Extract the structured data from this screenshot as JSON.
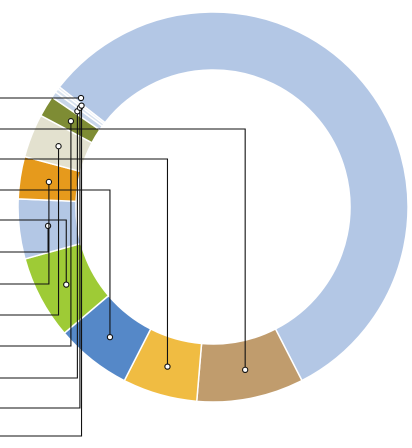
{
  "chart_data": {
    "type": "pie",
    "variant": "donut",
    "title": "",
    "legend": "none",
    "slices": [
      {
        "label": "",
        "value": 55.2,
        "color": "#b3c7e5"
      },
      {
        "label": "",
        "value": 8.6,
        "color": "#c09c6d"
      },
      {
        "label": "",
        "value": 6.0,
        "color": "#f0bc42"
      },
      {
        "label": "",
        "value": 6.1,
        "color": "#5588c8"
      },
      {
        "label": "",
        "value": 6.7,
        "color": "#9ecb36"
      },
      {
        "label": "",
        "value": 4.8,
        "color": "#b3c7e5"
      },
      {
        "label": "",
        "value": 3.4,
        "color": "#e69a1c"
      },
      {
        "label": "",
        "value": 3.5,
        "color": "#e3e1cf"
      },
      {
        "label": "",
        "value": 1.7,
        "color": "#7e8c34"
      },
      {
        "label": "",
        "value": 0.5,
        "color": "#c8d6ea"
      },
      {
        "label": "",
        "value": 0.3,
        "color": "#d8e2ef"
      },
      {
        "label": "",
        "value": 0.2,
        "color": "#e6ecf4"
      }
    ]
  }
}
